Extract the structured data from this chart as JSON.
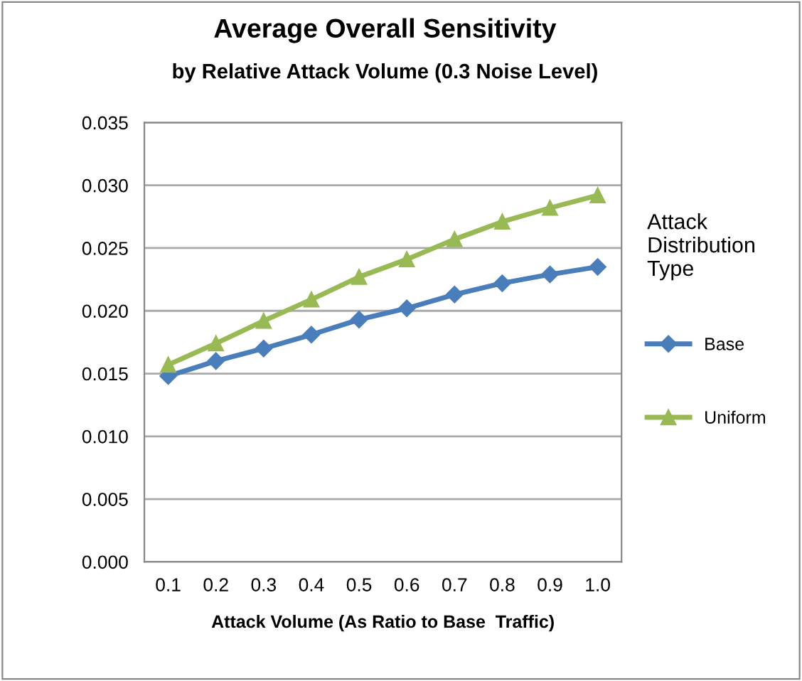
{
  "chart_data": {
    "type": "line",
    "title": "Average Overall Sensitivity",
    "subtitle": "by Relative Attack Volume (0.3 Noise Level)",
    "xlabel": "Attack Volume (As Ratio to Base  Traffic)",
    "legend_title": "Attack\nDistribution\nType",
    "legend": "right",
    "grid": "y",
    "categories": [
      "0.1",
      "0.2",
      "0.3",
      "0.4",
      "0.5",
      "0.6",
      "0.7",
      "0.8",
      "0.9",
      "1.0"
    ],
    "ylim": [
      0,
      0.035
    ],
    "yticks": [
      {
        "value": 0,
        "label": "0.000"
      },
      {
        "value": 0.005,
        "label": "0.005"
      },
      {
        "value": 0.01,
        "label": "0.010"
      },
      {
        "value": 0.015,
        "label": "0.015"
      },
      {
        "value": 0.02,
        "label": "0.020"
      },
      {
        "value": 0.025,
        "label": "0.025"
      },
      {
        "value": 0.03,
        "label": "0.030"
      },
      {
        "value": 0.035,
        "label": "0.035"
      }
    ],
    "series": [
      {
        "name": "Base",
        "color": "#4a7ebb",
        "marker": "diamond",
        "values": [
          0.0148,
          0.016,
          0.017,
          0.0181,
          0.0193,
          0.0202,
          0.0213,
          0.0222,
          0.0229,
          0.0235
        ]
      },
      {
        "name": "Uniform",
        "color": "#98b954",
        "marker": "triangle",
        "values": [
          0.0157,
          0.0174,
          0.0192,
          0.0209,
          0.0227,
          0.0241,
          0.0257,
          0.0271,
          0.0282,
          0.0292
        ]
      }
    ]
  }
}
